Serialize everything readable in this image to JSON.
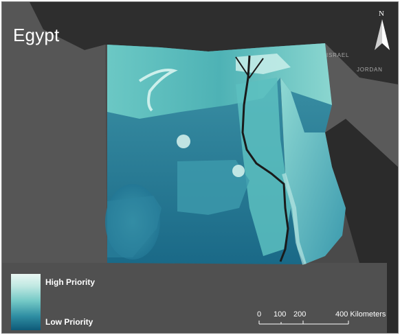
{
  "map": {
    "title": "Egypt",
    "labels": {
      "israel": "ISRAEL",
      "jordan": "JORDAN"
    },
    "north_label": "N",
    "legend": {
      "high_label": "High Priority",
      "low_label": "Low Priority",
      "colors": [
        "#e9f7f3",
        "#74c9c6",
        "#0e5a78"
      ]
    },
    "scale_bar": {
      "ticks": [
        "0",
        "100",
        "200"
      ],
      "end_label": "400 Kilometers"
    },
    "colors": {
      "land": "#565656",
      "sea": "#2e2e2e",
      "nile": "#1a1a1a"
    }
  }
}
